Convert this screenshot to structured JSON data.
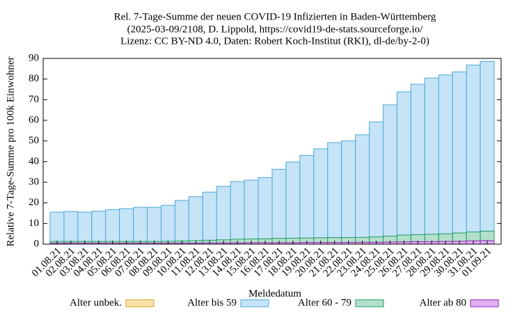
{
  "chart_data": {
    "type": "bar",
    "title": [
      "Rel. 7-Tage-Summe der neuen COVID-19 Infizierten in Baden-Württemberg",
      "(2025-03-09/2108, D. Lippold, https://covid19-de-stats.sourceforge.io/",
      "Lizenz: CC BY-ND 4.0, Daten: Robert Koch-Institut (RKI), dl-de/by-2-0)"
    ],
    "x_label": "Meldedatum",
    "y_label": "Relative 7-Tage-Summe pro 100k Einwohner",
    "categories": [
      "01.08.21",
      "02.08.21",
      "03.08.21",
      "04.08.21",
      "05.08.21",
      "06.08.21",
      "07.08.21",
      "08.08.21",
      "09.08.21",
      "10.08.21",
      "11.08.21",
      "12.08.21",
      "13.08.21",
      "14.08.21",
      "15.08.21",
      "16.08.21",
      "17.08.21",
      "18.08.21",
      "19.08.21",
      "20.08.21",
      "21.08.21",
      "22.08.21",
      "23.08.21",
      "24.08.21",
      "25.08.21",
      "26.08.21",
      "27.08.21",
      "28.08.21",
      "29.08.21",
      "30.08.21",
      "31.08.21",
      "01.09.21"
    ],
    "series": [
      {
        "name": "Alter bis 59",
        "color": "#c6e4f7",
        "edge": "#4aa8d8",
        "values": [
          15.5,
          15.8,
          15.5,
          16.0,
          16.7,
          17.2,
          17.8,
          17.8,
          18.8,
          21.2,
          23.0,
          25.2,
          28.0,
          30.3,
          31.0,
          32.2,
          36.3,
          39.8,
          43.0,
          46.2,
          49.2,
          50.0,
          53.0,
          59.2,
          67.5,
          73.8,
          77.5,
          80.5,
          82.0,
          83.5,
          86.8,
          88.5
        ]
      },
      {
        "name": "Alter 60 - 79",
        "color": "#b3e0cc",
        "edge": "#1a9a60",
        "values": [
          1.3,
          1.3,
          1.3,
          1.3,
          1.3,
          1.3,
          1.3,
          1.3,
          1.4,
          1.5,
          1.7,
          1.9,
          2.1,
          2.4,
          2.5,
          2.6,
          2.8,
          2.9,
          3.0,
          3.1,
          3.2,
          3.2,
          3.3,
          3.5,
          3.9,
          4.4,
          4.6,
          4.8,
          5.0,
          5.4,
          5.9,
          6.3
        ]
      },
      {
        "name": "Alter ab 80",
        "color": "#e0b0f0",
        "edge": "#9020b0",
        "values": [
          0.5,
          0.5,
          0.5,
          0.5,
          0.5,
          0.5,
          0.5,
          0.5,
          0.5,
          0.5,
          0.5,
          0.6,
          0.6,
          0.6,
          0.7,
          0.7,
          0.7,
          0.7,
          0.8,
          0.8,
          0.8,
          0.8,
          0.9,
          0.9,
          1.0,
          1.1,
          1.2,
          1.2,
          1.3,
          1.4,
          1.6,
          1.7
        ]
      },
      {
        "name": "Alter unbek.",
        "color": "#f9e0a8",
        "edge": "#e0a020",
        "values": [
          0,
          0,
          0,
          0,
          0,
          0,
          0,
          0,
          0,
          0,
          0,
          0,
          0,
          0,
          0,
          0,
          0,
          0,
          0,
          0,
          0,
          0,
          0,
          0,
          0,
          0,
          0,
          0,
          0,
          0,
          0,
          0
        ]
      }
    ],
    "legend_order": [
      3,
      0,
      1,
      2
    ],
    "ylim": [
      0,
      90
    ],
    "yticks": [
      0,
      10,
      20,
      30,
      40,
      50,
      60,
      70,
      80,
      90
    ]
  }
}
